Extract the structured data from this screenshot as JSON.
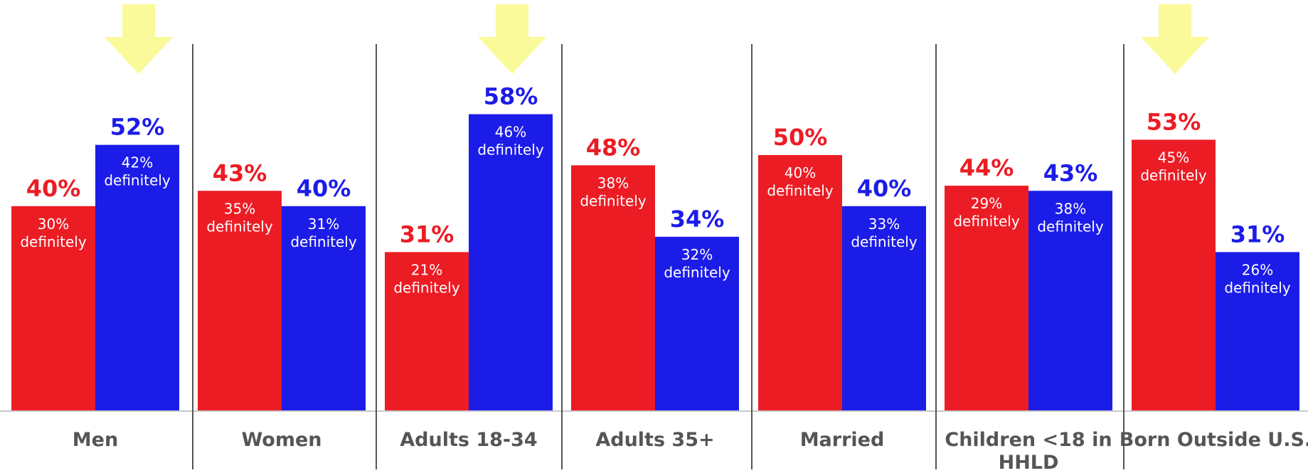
{
  "chart_data": {
    "type": "bar",
    "title": "",
    "xlabel": "",
    "ylabel": "",
    "ylim": [
      0,
      70
    ],
    "grid": false,
    "legend": "none",
    "categories": [
      "Men",
      "Women",
      "Adults 18-34",
      "Adults 35+",
      "Married",
      "Children <18 in HHLD",
      "Born Outside U.S."
    ],
    "category_lines": [
      [
        "Men"
      ],
      [
        "Women"
      ],
      [
        "Adults 18-34"
      ],
      [
        "Adults 35+"
      ],
      [
        "Married"
      ],
      [
        "Children <18 in",
        "HHLD"
      ],
      [
        "Born Outside U.S."
      ]
    ],
    "series": [
      {
        "color": "#ec1c24",
        "values": [
          40,
          43,
          31,
          48,
          50,
          44,
          53
        ],
        "labels": [
          "40%",
          "43%",
          "31%",
          "48%",
          "50%",
          "44%",
          "53%"
        ],
        "definitely_values": [
          30,
          35,
          21,
          38,
          40,
          29,
          45
        ],
        "definitely_labels": [
          "30%",
          "35%",
          "21%",
          "38%",
          "40%",
          "29%",
          "45%"
        ]
      },
      {
        "color": "#1c1ce8",
        "values": [
          52,
          40,
          58,
          34,
          40,
          43,
          31
        ],
        "labels": [
          "52%",
          "40%",
          "58%",
          "34%",
          "40%",
          "43%",
          "31%"
        ],
        "definitely_values": [
          42,
          31,
          46,
          32,
          33,
          38,
          26
        ],
        "definitely_labels": [
          "42%",
          "31%",
          "46%",
          "32%",
          "33%",
          "38%",
          "26%"
        ]
      }
    ],
    "definitely_word": "definitely",
    "highlighted_categories": [
      "Men",
      "Adults 18-34",
      "Born Outside U.S."
    ],
    "highlight_marker": "down-arrow",
    "highlight_color": "#fafa9a"
  }
}
